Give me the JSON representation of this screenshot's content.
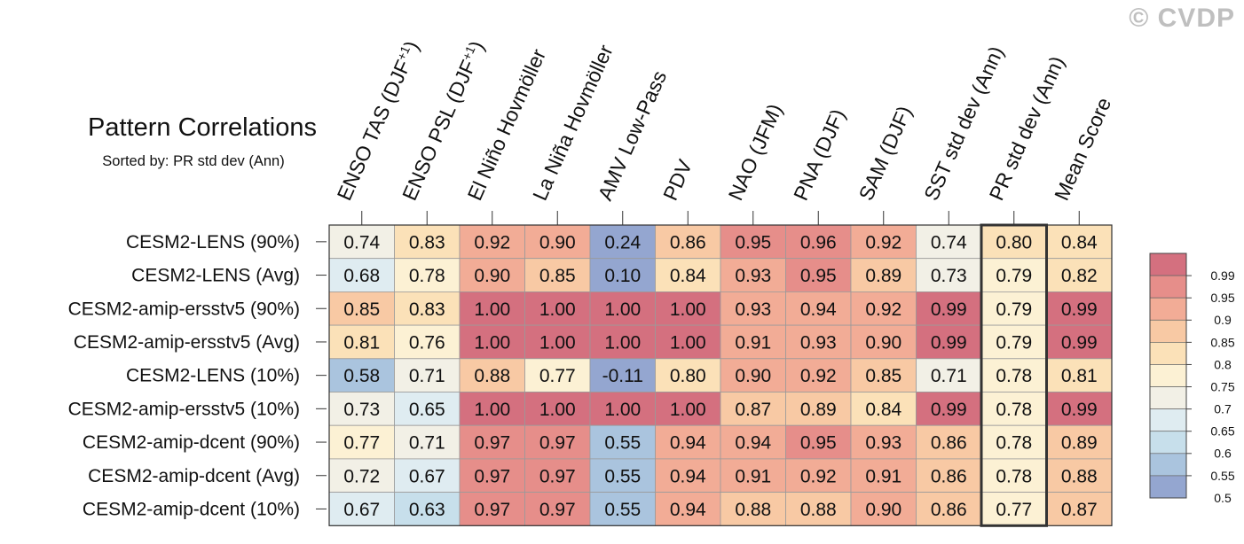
{
  "watermark": "© CVDP",
  "chart_data": {
    "type": "heatmap",
    "title": "Pattern Correlations",
    "subtitle": "Sorted by: PR std dev (Ann)",
    "columns": [
      "ENSO TAS (DJF+1)",
      "ENSO PSL (DJF+1)",
      "El Niño Hovmöller",
      "La Niña Hovmöller",
      "AMV Low-Pass",
      "PDV",
      "NAO (JFM)",
      "PNA (DJF)",
      "SAM (DJF)",
      "SST std dev (Ann)",
      "PR std dev (Ann)",
      "Mean Score"
    ],
    "highlighted_column": "PR std dev (Ann)",
    "rows": [
      {
        "name": "CESM2-LENS (90%)",
        "values": [
          "0.74",
          "0.83",
          "0.92",
          "0.90",
          "0.24",
          "0.86",
          "0.95",
          "0.96",
          "0.92",
          "0.74",
          "0.80",
          "0.84"
        ]
      },
      {
        "name": "CESM2-LENS (Avg)",
        "values": [
          "0.68",
          "0.78",
          "0.90",
          "0.85",
          "0.10",
          "0.84",
          "0.93",
          "0.95",
          "0.89",
          "0.73",
          "0.79",
          "0.82"
        ]
      },
      {
        "name": "CESM2-amip-ersstv5 (90%)",
        "values": [
          "0.85",
          "0.83",
          "1.00",
          "1.00",
          "1.00",
          "1.00",
          "0.93",
          "0.94",
          "0.92",
          "0.99",
          "0.79",
          "0.99"
        ]
      },
      {
        "name": "CESM2-amip-ersstv5 (Avg)",
        "values": [
          "0.81",
          "0.76",
          "1.00",
          "1.00",
          "1.00",
          "1.00",
          "0.91",
          "0.93",
          "0.90",
          "0.99",
          "0.79",
          "0.99"
        ]
      },
      {
        "name": "CESM2-LENS (10%)",
        "values": [
          "0.58",
          "0.71",
          "0.88",
          "0.77",
          "-0.11",
          "0.80",
          "0.90",
          "0.92",
          "0.85",
          "0.71",
          "0.78",
          "0.81"
        ]
      },
      {
        "name": "CESM2-amip-ersstv5 (10%)",
        "values": [
          "0.73",
          "0.65",
          "1.00",
          "1.00",
          "1.00",
          "1.00",
          "0.87",
          "0.89",
          "0.84",
          "0.99",
          "0.78",
          "0.99"
        ]
      },
      {
        "name": "CESM2-amip-dcent (90%)",
        "values": [
          "0.77",
          "0.71",
          "0.97",
          "0.97",
          "0.55",
          "0.94",
          "0.94",
          "0.95",
          "0.93",
          "0.86",
          "0.78",
          "0.89"
        ]
      },
      {
        "name": "CESM2-amip-dcent (Avg)",
        "values": [
          "0.72",
          "0.67",
          "0.97",
          "0.97",
          "0.55",
          "0.94",
          "0.91",
          "0.92",
          "0.91",
          "0.86",
          "0.78",
          "0.88"
        ]
      },
      {
        "name": "CESM2-amip-dcent (10%)",
        "values": [
          "0.67",
          "0.63",
          "0.97",
          "0.97",
          "0.55",
          "0.94",
          "0.88",
          "0.88",
          "0.90",
          "0.86",
          "0.77",
          "0.87"
        ]
      }
    ],
    "colorbar": {
      "levels": [
        "0.99",
        "0.95",
        "0.9",
        "0.85",
        "0.8",
        "0.75",
        "0.7",
        "0.65",
        "0.6",
        "0.55",
        "0.5"
      ],
      "colors": [
        "#d4707f",
        "#e68e8a",
        "#f2ac96",
        "#f8c9a4",
        "#fbe1b8",
        "#fcf1d4",
        "#f2f0e6",
        "#dfecf1",
        "#c7dfeb",
        "#aac4de",
        "#94a6d0"
      ]
    }
  }
}
